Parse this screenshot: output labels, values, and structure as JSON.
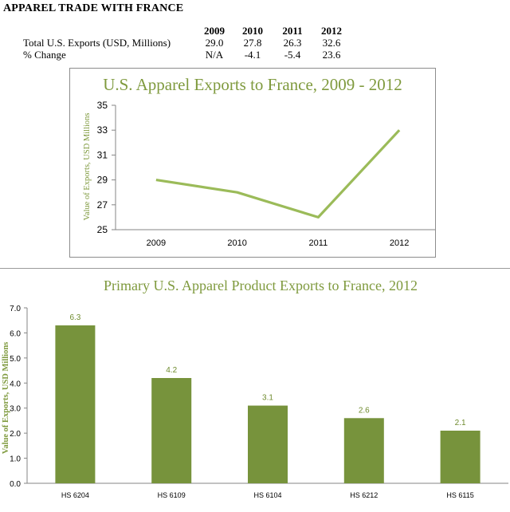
{
  "page": {
    "title": "APPAREL TRADE WITH FRANCE"
  },
  "summary": {
    "years": [
      "2009",
      "2010",
      "2011",
      "2012"
    ],
    "rows": [
      {
        "label": "Total U.S. Exports (USD, Millions)",
        "values": [
          "29.0",
          "27.8",
          "26.3",
          "32.6"
        ]
      },
      {
        "label": "% Change",
        "values": [
          "N/A",
          "-4.1",
          "-5.4",
          "23.6"
        ]
      }
    ]
  },
  "colors": {
    "line": "#9bbb59",
    "bar": "#77933c",
    "title_green": "#7f9a3e"
  },
  "chart_data": [
    {
      "type": "line",
      "title": "U.S. Apparel Exports to France, 2009 - 2012",
      "ylabel": "Value of Exports, USD Millions",
      "xlabel": "",
      "categories": [
        "2009",
        "2010",
        "2011",
        "2012"
      ],
      "series": [
        {
          "values": [
            29,
            28,
            26,
            33
          ]
        }
      ],
      "ylim": [
        25,
        35
      ],
      "yticks": [
        25,
        27,
        29,
        31,
        33,
        35
      ],
      "grid": false,
      "legend": "none"
    },
    {
      "type": "bar",
      "title": "Primary U.S. Apparel Product Exports to France, 2012",
      "ylabel": "Value of Exports, USD Millions",
      "xlabel": "",
      "categories": [
        "HS 6204",
        "HS 6109",
        "HS 6104",
        "HS 6212",
        "HS 6115"
      ],
      "values": [
        6.3,
        4.2,
        3.1,
        2.6,
        2.1
      ],
      "data_labels": [
        "6.3",
        "4.2",
        "3.1",
        "2.6",
        "2.1"
      ],
      "ylim": [
        0,
        7
      ],
      "yticks": [
        "0.0",
        "1.0",
        "2.0",
        "3.0",
        "4.0",
        "5.0",
        "6.0",
        "7.0"
      ],
      "grid": false,
      "legend": "none"
    }
  ]
}
